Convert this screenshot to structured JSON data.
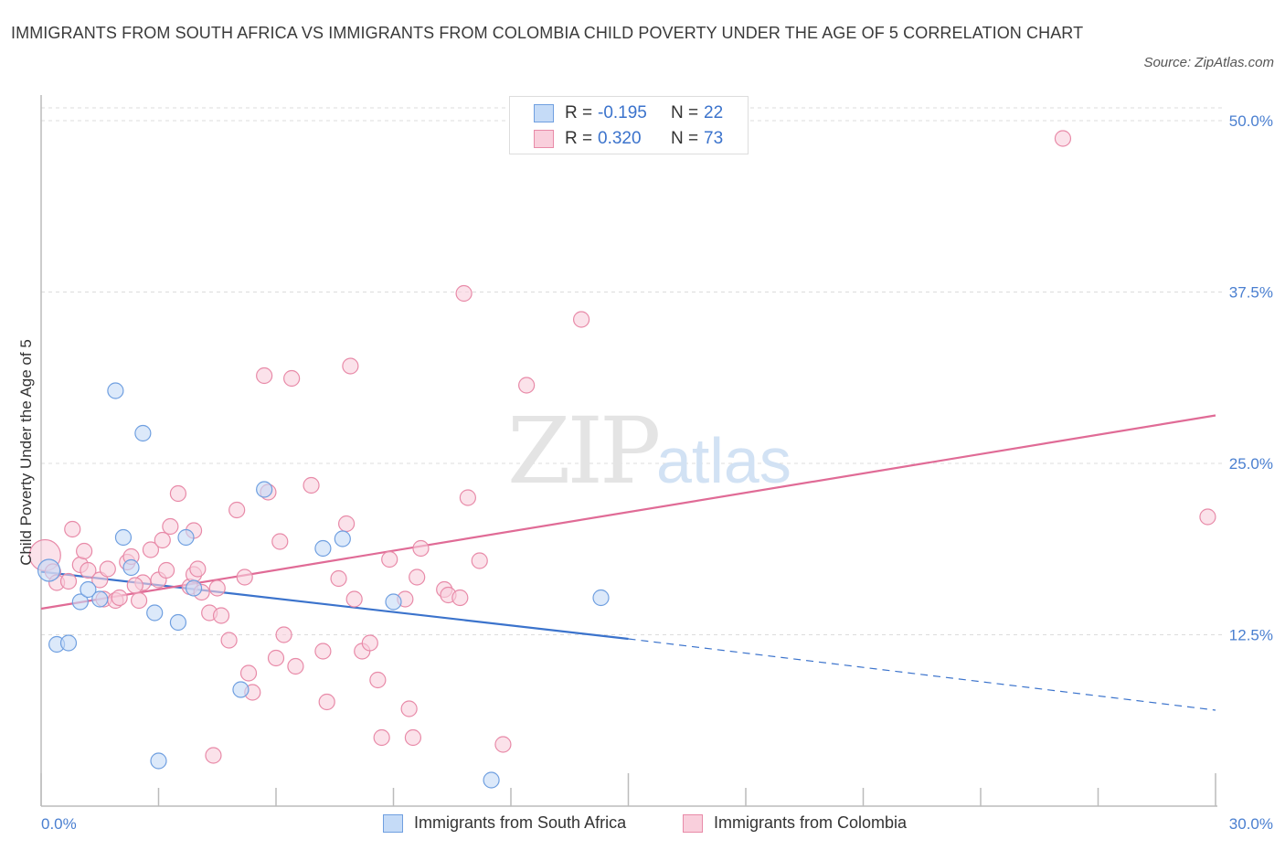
{
  "title": "IMMIGRANTS FROM SOUTH AFRICA VS IMMIGRANTS FROM COLOMBIA CHILD POVERTY UNDER THE AGE OF 5 CORRELATION CHART",
  "source": "Source: ZipAtlas.com",
  "watermark": {
    "zip": "ZIP",
    "atlas": "atlas"
  },
  "legend": {
    "rows": [
      {
        "r_label": "R =",
        "r_value": "-0.195",
        "n_label": "N =",
        "n_value": "22",
        "color": "#b9d3f5",
        "border": "#6f9fe0"
      },
      {
        "r_label": "R =",
        "r_value": "0.320",
        "n_label": "N =",
        "n_value": "73",
        "color": "#f8c8d7",
        "border": "#e88aa8"
      }
    ]
  },
  "bottom_legend": [
    {
      "label": "Immigrants from South Africa",
      "color": "#b9d3f5",
      "border": "#6f9fe0"
    },
    {
      "label": "Immigrants from Colombia",
      "color": "#f8c8d7",
      "border": "#e88aa8"
    }
  ],
  "colors": {
    "blue": "#3b73cc",
    "pink": "#e06b96",
    "blue_fill": "#c5dbf7",
    "pink_fill": "#f9cfdc"
  },
  "chart_data": {
    "type": "scatter",
    "xlabel": "",
    "ylabel": "Child Poverty Under the Age of 5",
    "xlim": [
      0,
      30
    ],
    "ylim": [
      0,
      50
    ],
    "x_tick_labels": [
      "0.0%",
      "30.0%"
    ],
    "y_ticks": [
      12.5,
      25.0,
      37.5,
      50.0
    ],
    "y_tick_labels": [
      "12.5%",
      "25.0%",
      "37.5%",
      "50.0%"
    ],
    "grid": true,
    "series": [
      {
        "name": "Immigrants from South Africa",
        "points": [
          [
            0.2,
            17.2
          ],
          [
            0.4,
            11.8
          ],
          [
            0.7,
            11.9
          ],
          [
            1.0,
            14.9
          ],
          [
            1.2,
            15.8
          ],
          [
            1.5,
            15.1
          ],
          [
            1.9,
            30.3
          ],
          [
            2.1,
            19.6
          ],
          [
            2.3,
            17.4
          ],
          [
            2.6,
            27.2
          ],
          [
            2.9,
            14.1
          ],
          [
            3.0,
            3.3
          ],
          [
            3.5,
            13.4
          ],
          [
            3.7,
            19.6
          ],
          [
            3.9,
            15.9
          ],
          [
            5.1,
            8.5
          ],
          [
            5.7,
            23.1
          ],
          [
            7.2,
            18.8
          ],
          [
            7.7,
            19.5
          ],
          [
            9.0,
            14.9
          ],
          [
            14.3,
            15.2
          ],
          [
            11.5,
            1.9
          ]
        ],
        "trend": {
          "x0": 0,
          "y0": 17.1,
          "x1": 15.0,
          "y1": 12.2,
          "x_end": 30,
          "y_end": 7.0
        }
      },
      {
        "name": "Immigrants from Colombia",
        "points": [
          [
            0.1,
            18.3
          ],
          [
            0.3,
            17.1
          ],
          [
            0.4,
            16.3
          ],
          [
            0.7,
            16.4
          ],
          [
            0.8,
            20.2
          ],
          [
            1.0,
            17.6
          ],
          [
            1.1,
            18.6
          ],
          [
            1.2,
            17.2
          ],
          [
            1.5,
            16.5
          ],
          [
            1.6,
            15.1
          ],
          [
            1.7,
            17.3
          ],
          [
            1.9,
            15.0
          ],
          [
            2.0,
            15.2
          ],
          [
            2.2,
            17.8
          ],
          [
            2.3,
            18.2
          ],
          [
            2.5,
            15.0
          ],
          [
            2.6,
            16.3
          ],
          [
            2.8,
            18.7
          ],
          [
            3.0,
            16.5
          ],
          [
            3.1,
            19.4
          ],
          [
            3.2,
            17.2
          ],
          [
            3.3,
            20.4
          ],
          [
            3.5,
            22.8
          ],
          [
            3.8,
            16.0
          ],
          [
            3.9,
            16.9
          ],
          [
            4.0,
            17.3
          ],
          [
            4.1,
            15.6
          ],
          [
            4.3,
            14.1
          ],
          [
            4.4,
            3.7
          ],
          [
            4.6,
            13.9
          ],
          [
            4.8,
            12.1
          ],
          [
            5.0,
            21.6
          ],
          [
            5.2,
            16.7
          ],
          [
            5.3,
            9.7
          ],
          [
            5.4,
            8.3
          ],
          [
            5.7,
            31.4
          ],
          [
            5.8,
            22.9
          ],
          [
            6.0,
            10.8
          ],
          [
            6.1,
            19.3
          ],
          [
            6.2,
            12.5
          ],
          [
            6.4,
            31.2
          ],
          [
            6.5,
            10.2
          ],
          [
            6.9,
            23.4
          ],
          [
            7.2,
            11.3
          ],
          [
            7.3,
            7.6
          ],
          [
            7.6,
            16.6
          ],
          [
            7.8,
            20.6
          ],
          [
            7.9,
            32.1
          ],
          [
            8.2,
            11.3
          ],
          [
            8.4,
            11.9
          ],
          [
            8.6,
            9.2
          ],
          [
            8.0,
            15.1
          ],
          [
            8.9,
            18.0
          ],
          [
            8.7,
            5.0
          ],
          [
            9.3,
            15.1
          ],
          [
            9.4,
            7.1
          ],
          [
            9.5,
            5.0
          ],
          [
            9.6,
            16.7
          ],
          [
            9.7,
            18.8
          ],
          [
            10.3,
            15.8
          ],
          [
            10.4,
            15.4
          ],
          [
            10.7,
            15.2
          ],
          [
            10.8,
            37.4
          ],
          [
            10.9,
            22.5
          ],
          [
            11.2,
            17.9
          ],
          [
            11.8,
            4.5
          ],
          [
            12.4,
            30.7
          ],
          [
            13.8,
            35.5
          ],
          [
            26.1,
            48.7
          ],
          [
            29.8,
            21.1
          ],
          [
            4.5,
            15.9
          ],
          [
            3.9,
            20.1
          ],
          [
            2.4,
            16.1
          ]
        ],
        "trend": {
          "x0": 0,
          "y0": 14.4,
          "x1": 30,
          "y1": 28.5
        }
      }
    ]
  }
}
